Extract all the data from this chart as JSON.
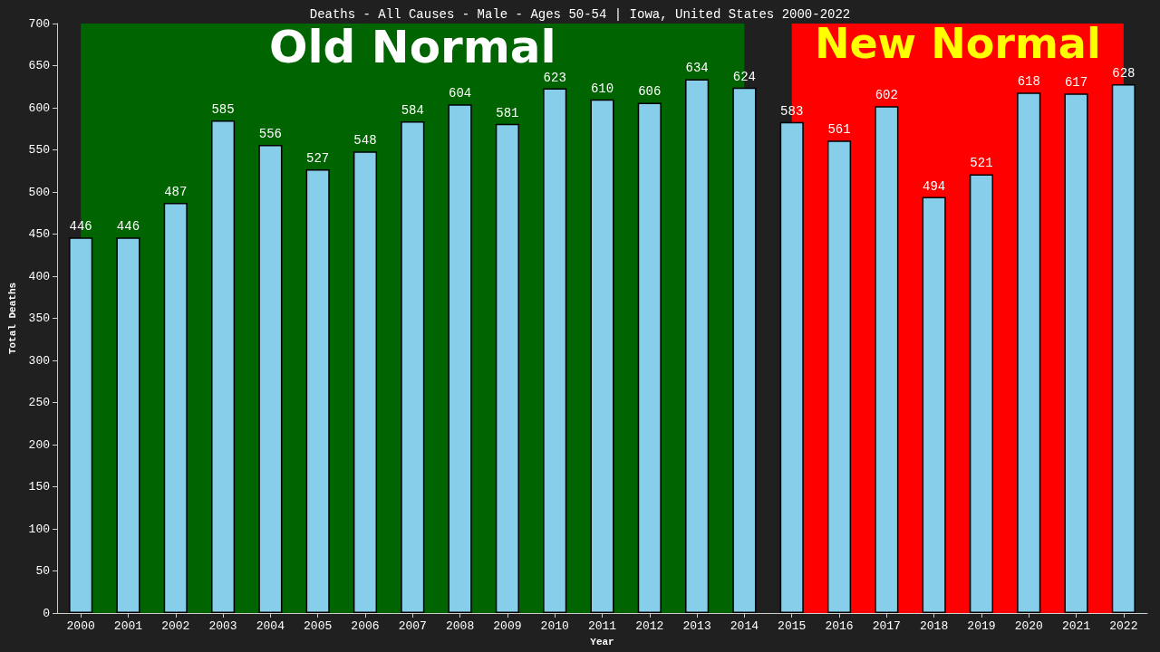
{
  "chart_data": {
    "type": "bar",
    "title": "Deaths - All Causes - Male - Ages 50-54 | Iowa, United States 2000-2022",
    "xlabel": "Year",
    "ylabel": "Total Deaths",
    "categories": [
      "2000",
      "2001",
      "2002",
      "2003",
      "2004",
      "2005",
      "2006",
      "2007",
      "2008",
      "2009",
      "2010",
      "2011",
      "2012",
      "2013",
      "2014",
      "2015",
      "2016",
      "2017",
      "2018",
      "2019",
      "2020",
      "2021",
      "2022"
    ],
    "values": [
      446,
      446,
      487,
      585,
      556,
      527,
      548,
      584,
      604,
      581,
      623,
      610,
      606,
      634,
      624,
      583,
      561,
      602,
      494,
      521,
      618,
      617,
      628
    ],
    "color": "#87ceeb",
    "data_labels": true,
    "ylim": [
      0,
      700
    ],
    "yticks": [
      0,
      50,
      100,
      150,
      200,
      250,
      300,
      350,
      400,
      450,
      500,
      550,
      600,
      650,
      700
    ],
    "grid": false,
    "bands": [
      {
        "axis": "x",
        "from": "2000",
        "to": "2014",
        "label": "Old Normal",
        "color": "#006400"
      },
      {
        "axis": "x",
        "from": "2015",
        "to": "2022",
        "label": "New Normal",
        "color": "#ff0000"
      }
    ]
  }
}
